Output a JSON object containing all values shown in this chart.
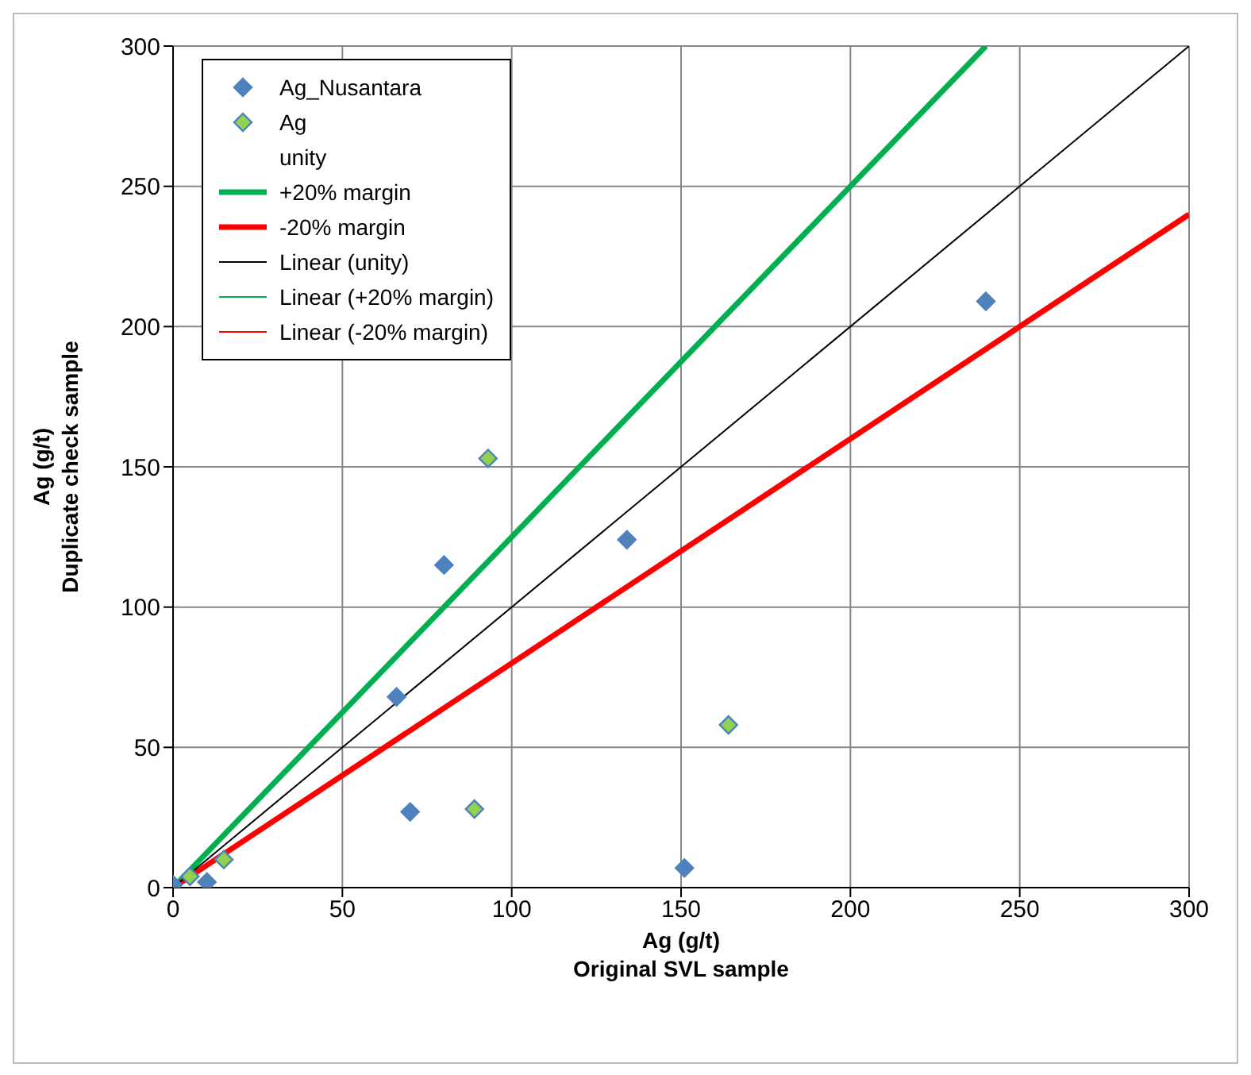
{
  "chart_data": {
    "type": "scatter",
    "xlabel": "Ag (g/t)\nOriginal SVL sample",
    "ylabel": "Ag (g/t)\nDuplicate check sample",
    "xlim": [
      0,
      300
    ],
    "xticks": [
      0,
      50,
      100,
      150,
      200,
      250,
      300
    ],
    "ylim": [
      0,
      300
    ],
    "yticks": [
      0,
      50,
      100,
      150,
      200,
      250,
      300
    ],
    "grid": true,
    "legend": "top left",
    "marker": "diamond",
    "series": [
      {
        "name": "Ag_Nusantara",
        "color": "#4f81bd",
        "x": [
          0,
          10,
          66,
          70,
          80,
          134,
          151,
          240
        ],
        "values": [
          1,
          2,
          68,
          27,
          115,
          124,
          7,
          209
        ]
      },
      {
        "name": "Ag",
        "color": "#92d050",
        "x": [
          5,
          15,
          89,
          93,
          164
        ],
        "values": [
          4,
          10,
          28,
          153,
          58
        ]
      },
      {
        "name": "unity",
        "type": "line"
      },
      {
        "name": "+20% margin",
        "type": "line",
        "marker": "none",
        "color": "#00b050",
        "x": [
          0,
          240
        ],
        "values": [
          0,
          300
        ]
      },
      {
        "name": "-20% margin",
        "type": "line",
        "marker": "none",
        "color": "#ff0000",
        "x": [
          0,
          300
        ],
        "values": [
          0,
          240
        ]
      },
      {
        "name": "Linear (unity)",
        "type": "line",
        "marker": "none",
        "color": "#000000",
        "x": [
          0,
          300
        ],
        "values": [
          0,
          300
        ]
      },
      {
        "name": "Linear (+20% margin)",
        "type": "line",
        "color": "#00b050"
      },
      {
        "name": "Linear (-20% margin)",
        "type": "line",
        "color": "#ff0000"
      }
    ]
  }
}
